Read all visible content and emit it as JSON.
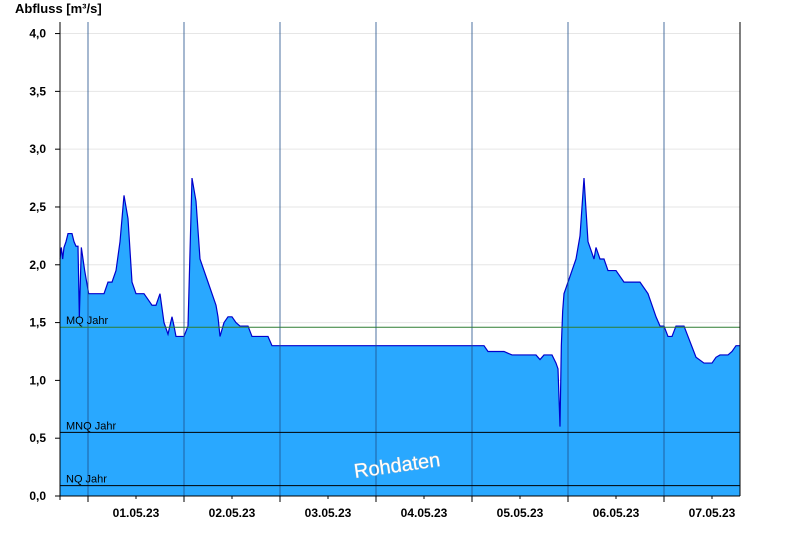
{
  "chart_data": {
    "type": "area",
    "ylabel": "Abfluss [m³/s]",
    "ylim": [
      0,
      4.1
    ],
    "yticks": [
      "0,0",
      "0,5",
      "1,0",
      "1,5",
      "2,0",
      "2,5",
      "3,0",
      "3,5",
      "4,0"
    ],
    "ytick_values": [
      0,
      0.5,
      1.0,
      1.5,
      2.0,
      2.5,
      3.0,
      3.5,
      4.0
    ],
    "x_domain": [
      "2023-04-30T17:00",
      "2023-05-07T19:00"
    ],
    "xticks": [
      "01.05.23",
      "02.05.23",
      "03.05.23",
      "04.05.23",
      "05.05.23",
      "06.05.23",
      "07.05.23"
    ],
    "day_boundaries": [
      "2023-05-01T00:00",
      "2023-05-02T00:00",
      "2023-05-03T00:00",
      "2023-05-04T00:00",
      "2023-05-05T00:00",
      "2023-05-06T00:00",
      "2023-05-07T00:00"
    ],
    "grid": true,
    "colors": {
      "fill": "#29a8ff",
      "line": "#0000cc",
      "mq": "#2e7d32",
      "mnq": "#000000",
      "nq": "#000000"
    },
    "reference_lines": [
      {
        "label": "MQ Jahr",
        "value": 1.46
      },
      {
        "label": "MNQ Jahr",
        "value": 0.55
      },
      {
        "label": "NQ Jahr",
        "value": 0.09
      }
    ],
    "annotation": "Rohdaten",
    "series": [
      {
        "x": [
          "2023-04-30T17:00",
          "2023-04-30T17:20",
          "2023-04-30T17:40",
          "2023-04-30T18:00",
          "2023-04-30T18:30",
          "2023-04-30T19:00",
          "2023-04-30T19:30",
          "2023-04-30T20:00",
          "2023-04-30T20:30",
          "2023-04-30T21:00",
          "2023-04-30T21:30",
          "2023-04-30T21:50",
          "2023-04-30T22:20",
          "2023-04-30T22:45",
          "2023-04-30T23:10",
          "2023-04-30T23:40",
          "2023-05-01T00:10",
          "2023-05-01T01:00",
          "2023-05-01T02:00",
          "2023-05-01T03:00",
          "2023-05-01T04:00",
          "2023-05-01T05:00",
          "2023-05-01T06:00",
          "2023-05-01T07:00",
          "2023-05-01T08:00",
          "2023-05-01T09:00",
          "2023-05-01T10:00",
          "2023-05-01T11:00",
          "2023-05-01T12:00",
          "2023-05-01T13:00",
          "2023-05-01T14:00",
          "2023-05-01T15:00",
          "2023-05-01T16:00",
          "2023-05-01T17:00",
          "2023-05-01T18:00",
          "2023-05-01T19:00",
          "2023-05-01T20:00",
          "2023-05-01T21:00",
          "2023-05-01T21:30",
          "2023-05-01T22:00",
          "2023-05-01T22:30",
          "2023-05-01T23:00",
          "2023-05-02T00:00",
          "2023-05-02T01:00",
          "2023-05-02T02:00",
          "2023-05-02T03:00",
          "2023-05-02T04:00",
          "2023-05-02T05:00",
          "2023-05-02T06:00",
          "2023-05-02T07:00",
          "2023-05-02T08:00",
          "2023-05-02T08:30",
          "2023-05-02T09:00",
          "2023-05-02T10:00",
          "2023-05-02T11:00",
          "2023-05-02T12:00",
          "2023-05-02T13:00",
          "2023-05-02T14:00",
          "2023-05-02T15:00",
          "2023-05-02T16:00",
          "2023-05-02T17:00",
          "2023-05-02T18:00",
          "2023-05-02T19:00",
          "2023-05-02T20:00",
          "2023-05-02T20:30",
          "2023-05-02T21:00",
          "2023-05-02T22:00",
          "2023-05-02T23:00",
          "2023-05-03T00:00",
          "2023-05-03T01:00",
          "2023-05-03T02:00",
          "2023-05-03T03:00",
          "2023-05-03T04:00",
          "2023-05-03T05:00",
          "2023-05-03T06:00",
          "2023-05-03T07:00",
          "2023-05-03T08:00",
          "2023-05-03T09:00",
          "2023-05-03T10:00",
          "2023-05-03T12:00",
          "2023-05-03T14:00",
          "2023-05-03T16:00",
          "2023-05-03T18:00",
          "2023-05-03T20:00",
          "2023-05-03T22:00",
          "2023-05-04T00:00",
          "2023-05-04T03:00",
          "2023-05-04T06:00",
          "2023-05-04T07:00",
          "2023-05-04T08:00",
          "2023-05-04T12:00",
          "2023-05-04T16:00",
          "2023-05-04T20:00",
          "2023-05-04T21:00",
          "2023-05-04T22:00",
          "2023-05-04T23:00",
          "2023-05-05T00:00",
          "2023-05-05T01:00",
          "2023-05-05T02:00",
          "2023-05-05T03:00",
          "2023-05-05T04:00",
          "2023-05-05T06:00",
          "2023-05-05T08:00",
          "2023-05-05T10:00",
          "2023-05-05T12:00",
          "2023-05-05T14:00",
          "2023-05-05T15:00",
          "2023-05-05T16:00",
          "2023-05-05T17:00",
          "2023-05-05T18:00",
          "2023-05-05T19:00",
          "2023-05-05T20:00",
          "2023-05-05T21:00",
          "2023-05-05T21:30",
          "2023-05-05T22:00",
          "2023-05-05T22:20",
          "2023-05-05T22:40",
          "2023-05-05T23:00",
          "2023-05-05T23:30",
          "2023-05-06T00:00",
          "2023-05-06T01:00",
          "2023-05-06T02:00",
          "2023-05-06T03:00",
          "2023-05-06T04:00",
          "2023-05-06T05:00",
          "2023-05-06T06:00",
          "2023-05-06T06:30",
          "2023-05-06T07:00",
          "2023-05-06T08:00",
          "2023-05-06T09:00",
          "2023-05-06T10:00",
          "2023-05-06T11:00",
          "2023-05-06T12:00",
          "2023-05-06T14:00",
          "2023-05-06T16:00",
          "2023-05-06T18:00",
          "2023-05-06T20:00",
          "2023-05-06T21:00",
          "2023-05-06T22:00",
          "2023-05-06T23:00",
          "2023-05-07T00:00",
          "2023-05-07T01:00",
          "2023-05-07T02:00",
          "2023-05-07T03:00",
          "2023-05-07T04:00",
          "2023-05-07T05:00",
          "2023-05-07T06:00",
          "2023-05-07T08:00",
          "2023-05-07T10:00",
          "2023-05-07T12:00",
          "2023-05-07T13:00",
          "2023-05-07T14:00",
          "2023-05-07T15:00",
          "2023-05-07T16:00",
          "2023-05-07T17:00",
          "2023-05-07T18:00",
          "2023-05-07T19:00"
        ],
        "y": [
          2.05,
          2.15,
          2.05,
          2.15,
          2.2,
          2.27,
          2.27,
          2.27,
          2.2,
          2.16,
          2.16,
          1.55,
          2.15,
          2.05,
          1.95,
          1.85,
          1.75,
          1.75,
          1.75,
          1.75,
          1.75,
          1.85,
          1.85,
          1.95,
          2.2,
          2.6,
          2.4,
          1.85,
          1.75,
          1.75,
          1.75,
          1.7,
          1.65,
          1.65,
          1.75,
          1.5,
          1.4,
          1.55,
          1.47,
          1.38,
          1.38,
          1.38,
          1.38,
          1.47,
          2.75,
          2.55,
          2.05,
          1.95,
          1.85,
          1.75,
          1.65,
          1.55,
          1.38,
          1.5,
          1.55,
          1.55,
          1.5,
          1.47,
          1.47,
          1.47,
          1.38,
          1.38,
          1.38,
          1.38,
          1.38,
          1.38,
          1.3,
          1.3,
          1.3,
          1.3,
          1.3,
          1.3,
          1.3,
          1.3,
          1.3,
          1.3,
          1.3,
          1.3,
          1.3,
          1.3,
          1.3,
          1.3,
          1.3,
          1.3,
          1.3,
          1.3,
          1.3,
          1.3,
          1.3,
          1.3,
          1.3,
          1.3,
          1.3,
          1.3,
          1.3,
          1.3,
          1.3,
          1.3,
          1.3,
          1.3,
          1.25,
          1.25,
          1.25,
          1.22,
          1.22,
          1.22,
          1.22,
          1.22,
          1.18,
          1.22,
          1.22,
          1.22,
          1.15,
          1.1,
          0.6,
          1.3,
          1.6,
          1.75,
          1.8,
          1.85,
          1.95,
          2.05,
          2.25,
          2.75,
          2.2,
          2.1,
          2.05,
          2.15,
          2.05,
          2.05,
          1.95,
          1.95,
          1.95,
          1.85,
          1.85,
          1.85,
          1.75,
          1.65,
          1.55,
          1.47,
          1.47,
          1.38,
          1.38,
          1.47,
          1.47,
          1.47,
          1.38,
          1.2,
          1.15,
          1.15,
          1.2,
          1.22,
          1.22,
          1.22,
          1.25,
          1.3,
          1.3
        ]
      }
    ]
  }
}
